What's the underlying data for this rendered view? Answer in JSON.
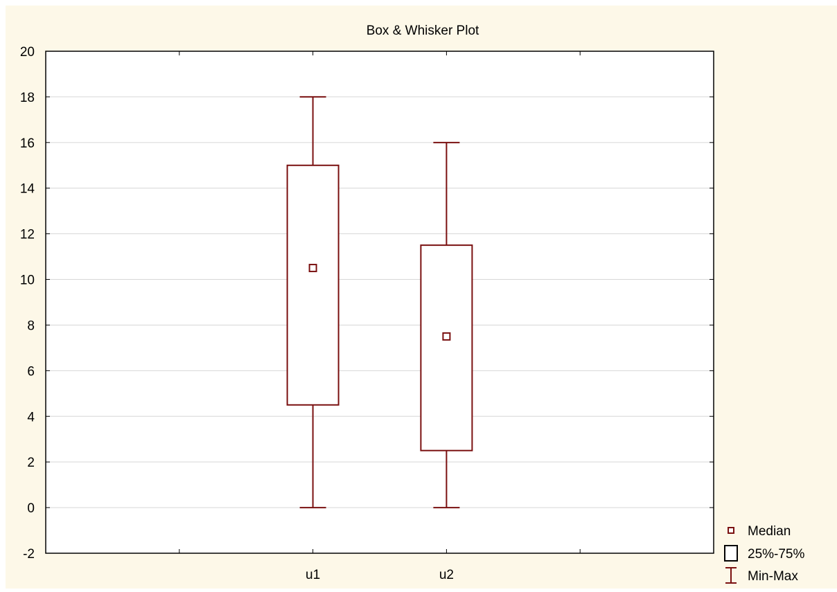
{
  "chart_data": {
    "type": "box",
    "title": "Box & Whisker Plot",
    "xlabel": "",
    "ylabel": "",
    "ylim": [
      -2,
      20
    ],
    "y_ticks": [
      -2,
      0,
      2,
      4,
      6,
      8,
      10,
      12,
      14,
      16,
      18,
      20
    ],
    "y_tick_labels": [
      "-2",
      "0",
      "2",
      "4",
      "6",
      "8",
      "10",
      "12",
      "14",
      "16",
      "18",
      "20"
    ],
    "categories": [
      "u1",
      "u2"
    ],
    "boxes": [
      {
        "name": "u1",
        "min": 0,
        "q1": 4.5,
        "median": 10.5,
        "q3": 15,
        "max": 18
      },
      {
        "name": "u2",
        "min": 0,
        "q1": 2.5,
        "median": 7.5,
        "q3": 11.5,
        "max": 16
      }
    ],
    "grid": true,
    "legend_position": "bottom-right",
    "legend": [
      {
        "label": "Median",
        "symbol": "median"
      },
      {
        "label": "25%-75%",
        "symbol": "box"
      },
      {
        "label": "Min-Max",
        "symbol": "whisker"
      }
    ],
    "colors": {
      "series": "#7a1010",
      "background": "#fdf8e8",
      "plot_background": "#ffffff",
      "grid": "#d6d6d6",
      "axis": "#000000"
    }
  }
}
